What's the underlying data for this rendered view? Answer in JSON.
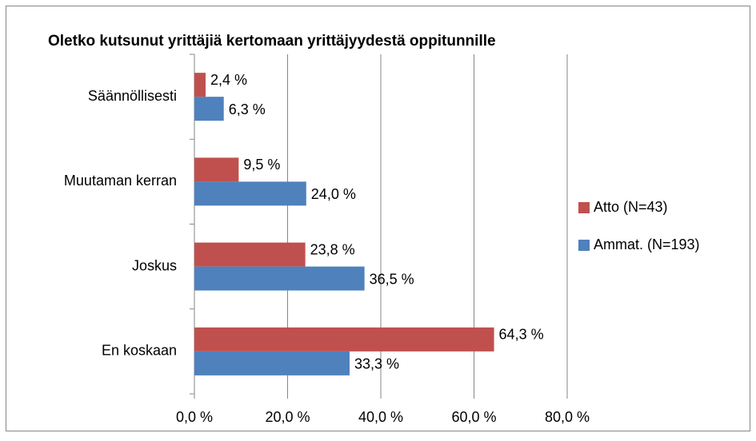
{
  "chart_data": {
    "type": "hbar",
    "title": "Oletko kutsunut yrittäjiä kertomaan yrittäjyydestä oppitunnille",
    "categories": [
      "Säännöllisesti",
      "Muutaman kerran",
      "Joskus",
      "En koskaan"
    ],
    "series": [
      {
        "name": "Atto (N=43)",
        "color": "#c0504d",
        "values": [
          2.4,
          9.5,
          23.8,
          64.3
        ],
        "value_labels": [
          "2,4 %",
          "9,5 %",
          "23,8 %",
          "64,3 %"
        ]
      },
      {
        "name": "Ammat. (N=193)",
        "color": "#4f81bd",
        "values": [
          6.3,
          24.0,
          36.5,
          33.3
        ],
        "value_labels": [
          "6,3 %",
          "24,0 %",
          "36,5 %",
          "33,3 %"
        ]
      }
    ],
    "xlim": [
      0,
      80
    ],
    "xticks": [
      {
        "value": 0,
        "label": "0,0 %"
      },
      {
        "value": 20,
        "label": "20,0 %"
      },
      {
        "value": 40,
        "label": "40,0 %"
      },
      {
        "value": 60,
        "label": "60,0 %"
      },
      {
        "value": 80,
        "label": "80,0 %"
      }
    ],
    "grid": true,
    "legend": "right"
  }
}
